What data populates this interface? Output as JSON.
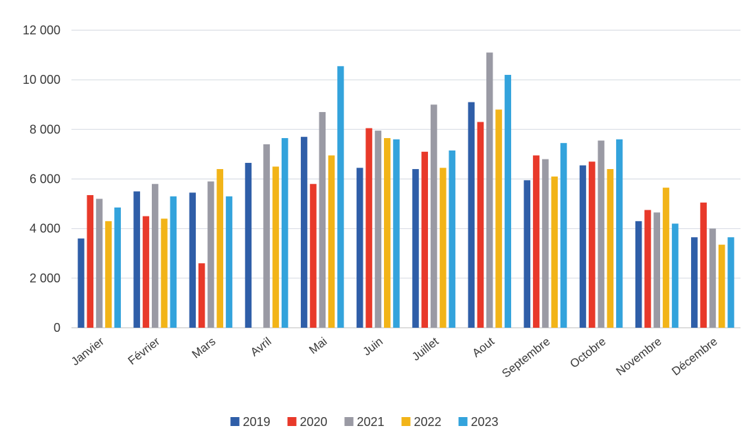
{
  "chart_data": {
    "type": "bar",
    "title": "",
    "xlabel": "",
    "ylabel": "",
    "ylim": [
      0,
      12000
    ],
    "yticks": [
      0,
      2000,
      4000,
      6000,
      8000,
      10000,
      12000
    ],
    "ytick_labels": [
      "0",
      "2 000",
      "4 000",
      "6 000",
      "8 000",
      "10 000",
      "12 000"
    ],
    "grid": true,
    "legend_position": "bottom",
    "categories": [
      "Janvier",
      "Février",
      "Mars",
      "Avril",
      "Mai",
      "Juin",
      "Juillet",
      "Aout",
      "Septembre",
      "Octobre",
      "Novembre",
      "Décembre"
    ],
    "series": [
      {
        "name": "2019",
        "color": "#2f5ea8",
        "values": [
          3600,
          5500,
          5450,
          6650,
          7700,
          6450,
          6400,
          9100,
          5950,
          6550,
          4300,
          3650
        ]
      },
      {
        "name": "2020",
        "color": "#e8392a",
        "values": [
          5350,
          4500,
          2600,
          null,
          5800,
          8050,
          7100,
          8300,
          6950,
          6700,
          4750,
          5050
        ]
      },
      {
        "name": "2021",
        "color": "#9a9aa4",
        "values": [
          5200,
          5800,
          5900,
          7400,
          8700,
          7950,
          9000,
          11100,
          6800,
          7550,
          4650,
          4000
        ]
      },
      {
        "name": "2022",
        "color": "#f2b418",
        "values": [
          4300,
          4400,
          6400,
          6500,
          6950,
          7650,
          6450,
          8800,
          6100,
          6400,
          5650,
          3350
        ]
      },
      {
        "name": "2023",
        "color": "#33a3dc",
        "values": [
          4850,
          5300,
          5300,
          7650,
          10550,
          7600,
          7150,
          10200,
          7450,
          7600,
          4200,
          3650
        ]
      }
    ]
  }
}
